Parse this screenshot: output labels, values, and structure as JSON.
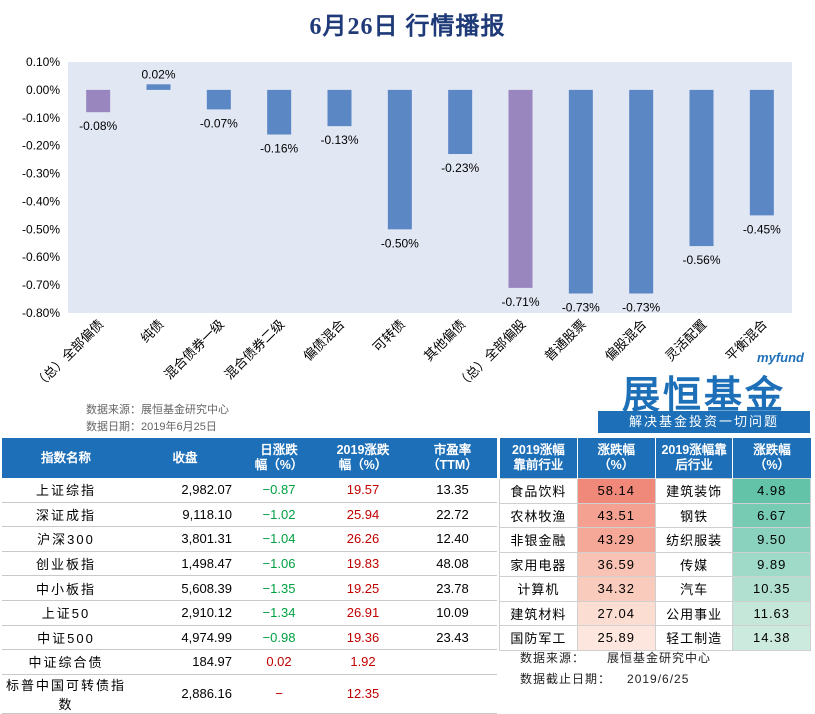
{
  "title": "6月26日  行情播报",
  "chart_data": {
    "type": "bar",
    "categories": [
      "（总）全部偏债",
      "纯债",
      "混合债券一级",
      "混合债券二级",
      "偏债混合",
      "可转债",
      "其他偏债",
      "（总）全部偏股",
      "普通股票",
      "偏股混合",
      "灵活配置",
      "平衡混合"
    ],
    "values": [
      -0.08,
      0.02,
      -0.07,
      -0.16,
      -0.13,
      -0.5,
      -0.23,
      -0.71,
      -0.73,
      -0.73,
      -0.56,
      -0.45
    ],
    "value_labels": [
      "-0.08%",
      "0.02%",
      "-0.07%",
      "-0.16%",
      "-0.13%",
      "-0.50%",
      "-0.23%",
      "-0.71%",
      "-0.73%",
      "-0.73%",
      "-0.56%",
      "-0.45%"
    ],
    "highlight_categories": [
      "（总）全部偏债",
      "（总）全部偏股"
    ],
    "ylim": [
      -0.8,
      0.1
    ],
    "yticks": [
      "0.10%",
      "0.00%",
      "-0.10%",
      "-0.20%",
      "-0.30%",
      "-0.40%",
      "-0.50%",
      "-0.60%",
      "-0.70%",
      "-0.80%"
    ],
    "ytick_values": [
      0.1,
      0.0,
      -0.1,
      -0.2,
      -0.3,
      -0.4,
      -0.5,
      -0.6,
      -0.7,
      -0.8
    ],
    "colors": {
      "bar": "#5b87c5",
      "highlight": "#9a86bf",
      "plot_bg": "#e2e7f4"
    },
    "source_line1": "数据来源：展恒基金研究中心",
    "source_line2": "数据日期：2019年6月25日"
  },
  "logo": {
    "small": "myfund",
    "main": "展恒基金",
    "sub": "解决基金投资一切问题"
  },
  "index_table": {
    "headers": [
      "指数名称",
      "收盘",
      "日涨跌\n幅（%）",
      "2019涨跌\n幅（%）",
      "市盈率\n（TTM）"
    ],
    "rows": [
      {
        "name": "上证综指",
        "close": "2,982.07",
        "day": "−0.87",
        "ytd": "19.57",
        "pe": "13.35"
      },
      {
        "name": "深证成指",
        "close": "9,118.10",
        "day": "−1.02",
        "ytd": "25.94",
        "pe": "22.72"
      },
      {
        "name": "沪深300",
        "close": "3,801.31",
        "day": "−1.04",
        "ytd": "26.26",
        "pe": "12.40"
      },
      {
        "name": "创业板指",
        "close": "1,498.47",
        "day": "−1.06",
        "ytd": "19.83",
        "pe": "48.08"
      },
      {
        "name": "中小板指",
        "close": "5,608.39",
        "day": "−1.35",
        "ytd": "19.25",
        "pe": "23.78"
      },
      {
        "name": "上证50",
        "close": "2,910.12",
        "day": "−1.34",
        "ytd": "26.91",
        "pe": "10.09"
      },
      {
        "name": "中证500",
        "close": "4,974.99",
        "day": "−0.98",
        "ytd": "19.36",
        "pe": "23.43"
      },
      {
        "name": "中证综合债",
        "close": "184.97",
        "day": "0.02",
        "ytd": "1.92",
        "pe": ""
      },
      {
        "name": "标普中国可转债指数",
        "close": "2,886.16",
        "day": "−",
        "ytd": "12.35",
        "pe": ""
      }
    ]
  },
  "industry_table": {
    "headers": [
      "2019涨幅\n靠前行业",
      "涨跌幅\n（%）",
      "2019涨幅靠\n后行业",
      "涨跌幅\n（%）"
    ],
    "rows": [
      {
        "top": "食品饮料",
        "top_val": "58.14",
        "bottom": "建筑装饰",
        "bottom_val": "4.98"
      },
      {
        "top": "农林牧渔",
        "top_val": "43.51",
        "bottom": "钢铁",
        "bottom_val": "6.67"
      },
      {
        "top": "非银金融",
        "top_val": "43.29",
        "bottom": "纺织服装",
        "bottom_val": "9.50"
      },
      {
        "top": "家用电器",
        "top_val": "36.59",
        "bottom": "传媒",
        "bottom_val": "9.89"
      },
      {
        "top": "计算机",
        "top_val": "34.32",
        "bottom": "汽车",
        "bottom_val": "10.35"
      },
      {
        "top": "建筑材料",
        "top_val": "27.04",
        "bottom": "公用事业",
        "bottom_val": "11.63"
      },
      {
        "top": "国防军工",
        "top_val": "25.89",
        "bottom": "轻工制造",
        "bottom_val": "14.38"
      }
    ],
    "top_colors": [
      "#f1897a",
      "#f4a191",
      "#f5a898",
      "#f8c3b4",
      "#f9cbbd",
      "#fbddd2",
      "#fde6dd"
    ],
    "bottom_colors": [
      "#62c3a8",
      "#77cbb3",
      "#8ad2bd",
      "#9fdac8",
      "#b1e0d1",
      "#c4e7da",
      "#cdeadf"
    ]
  },
  "notes": {
    "source_label": "数据来源：",
    "source_value": "展恒基金研究中心",
    "date_label": "数据截止日期：",
    "date_value": "2019/6/25"
  }
}
